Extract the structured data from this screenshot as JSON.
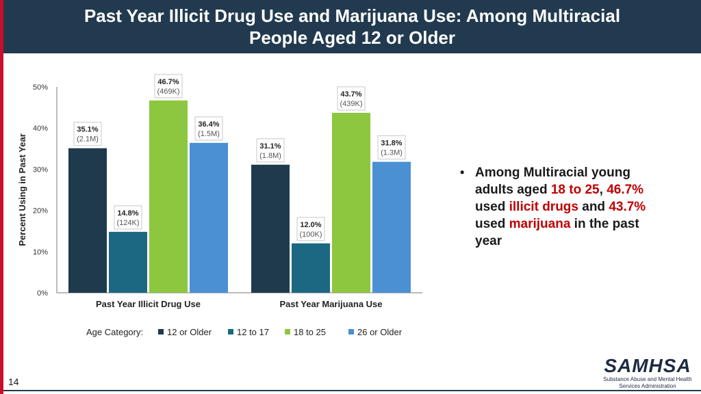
{
  "header": {
    "title_line1": "Past Year Illicit Drug Use and Marijuana Use: Among Multiracial",
    "title_line2": "People Aged 12 or Older"
  },
  "chart_data": {
    "type": "bar",
    "ylabel": "Percent Using in Past Year",
    "ylim": [
      0,
      50
    ],
    "yticks": [
      "0%",
      "10%",
      "20%",
      "30%",
      "40%",
      "50%"
    ],
    "categories": [
      "Past Year Illicit Drug Use",
      "Past Year Marijuana Use"
    ],
    "legend_title": "Age Category:",
    "legend_position": "bottom",
    "grid": false,
    "series": [
      {
        "name": "12 or Older",
        "color": "#1f3a4d",
        "values": [
          35.1,
          31.1
        ],
        "labels": [
          "35.1%",
          "31.1%"
        ],
        "counts": [
          "(2.1M)",
          "(1.8M)"
        ]
      },
      {
        "name": "12 to 17",
        "color": "#1c6882",
        "values": [
          14.8,
          12.0
        ],
        "labels": [
          "14.8%",
          "12.0%"
        ],
        "counts": [
          "(124K)",
          "(100K)"
        ]
      },
      {
        "name": "18 to 25",
        "color": "#8dc63f",
        "values": [
          46.7,
          43.7
        ],
        "labels": [
          "46.7%",
          "43.7%"
        ],
        "counts": [
          "(469K)",
          "(439K)"
        ]
      },
      {
        "name": "26 or Older",
        "color": "#4a90d2",
        "values": [
          36.4,
          31.8
        ],
        "labels": [
          "36.4%",
          "31.8%"
        ],
        "counts": [
          "(1.5M)",
          "(1.3M)"
        ]
      }
    ]
  },
  "bullet": {
    "t1": "Among Multiracial young adults aged ",
    "h1": "18 to 25",
    "t2": ", ",
    "h2": "46.7%",
    "t3": " used ",
    "h3": "illicit drugs",
    "t4": " and ",
    "h4": "43.7%",
    "t5": " used ",
    "h5": "marijuana",
    "t6": " in the past year"
  },
  "footer": {
    "slide_number": "14",
    "logo_text": "SAMHSA",
    "logo_subtext": "Substance Abuse and Mental Health Services Administration"
  }
}
